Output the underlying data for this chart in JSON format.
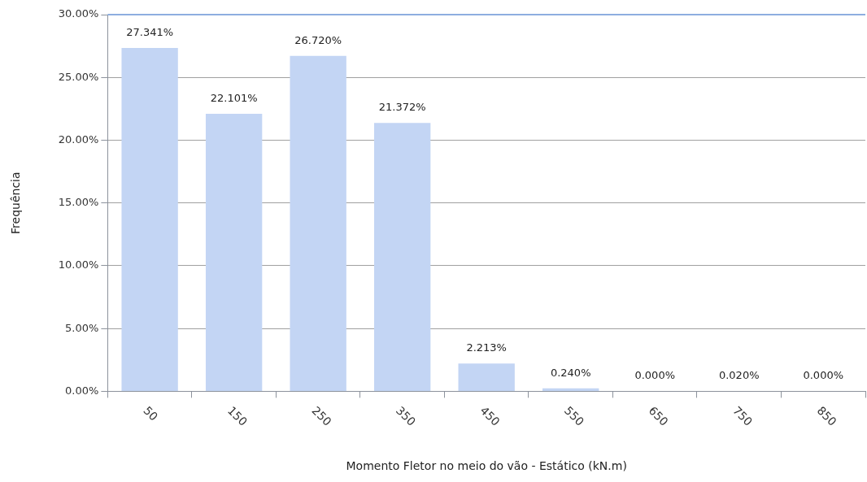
{
  "chart_data": {
    "type": "bar",
    "xlabel": "Momento Fletor no meio do vão - Estático (kN.m)",
    "ylabel": "Frequência",
    "categories": [
      "50",
      "150",
      "250",
      "350",
      "450",
      "550",
      "650",
      "750",
      "850"
    ],
    "values": [
      27.341,
      22.101,
      26.72,
      21.372,
      2.213,
      0.24,
      0,
      0.02,
      0
    ],
    "value_labels": [
      "27.341%",
      "22.101%",
      "26.720%",
      "21.372%",
      "2.213%",
      "0.240%",
      "0.000%",
      "0.020%",
      "0.000%"
    ],
    "color": "#c3d5f4",
    "ylim": [
      0,
      30
    ],
    "yticks": [
      {
        "value": 0,
        "label": "0.00%"
      },
      {
        "value": 5,
        "label": "5.00%"
      },
      {
        "value": 10,
        "label": "10.00%"
      },
      {
        "value": 15,
        "label": "15.00%"
      },
      {
        "value": 20,
        "label": "20.00%"
      },
      {
        "value": 25,
        "label": "25.00%"
      },
      {
        "value": 30,
        "label": "30.00%"
      }
    ],
    "grid": "y",
    "legend": false
  }
}
